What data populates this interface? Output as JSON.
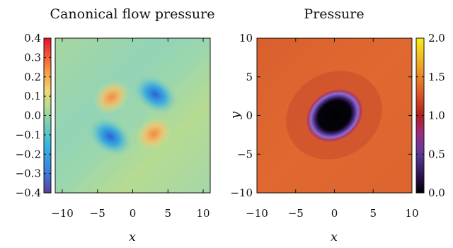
{
  "chart_data": [
    {
      "type": "heatmap",
      "title": "Canonical flow pressure",
      "xlabel": "x",
      "ylabel": "",
      "xlim": [
        -11,
        11
      ],
      "ylim": [
        -11,
        11
      ],
      "x_ticks": [
        "−10",
        "−5",
        "0",
        "5",
        "10"
      ],
      "x_tick_values": [
        -10,
        -5,
        0,
        5,
        10
      ],
      "y_ticks": [],
      "colorbar": {
        "colormap": "rainbow (blue → green → yellow → red)",
        "range": [
          -0.4,
          0.4
        ],
        "ticks": [
          "−0.4",
          "−0.3",
          "−0.2",
          "−0.1",
          "0.0",
          "0.1",
          "0.2",
          "0.3",
          "0.4"
        ],
        "tick_values": [
          -0.4,
          -0.3,
          -0.2,
          -0.1,
          0.0,
          0.1,
          0.2,
          0.3,
          0.4
        ],
        "position": "left"
      },
      "features": [
        {
          "kind": "low",
          "x": 3.2,
          "y": 3.0,
          "value": -0.22
        },
        {
          "kind": "low",
          "x": -3.2,
          "y": -3.0,
          "value": -0.22
        },
        {
          "kind": "high",
          "x": -3.0,
          "y": 2.6,
          "value": 0.15
        },
        {
          "kind": "high",
          "x": 3.0,
          "y": -2.6,
          "value": 0.15
        },
        {
          "kind": "background",
          "value": 0.02
        }
      ]
    },
    {
      "type": "heatmap",
      "title": "Pressure",
      "xlabel": "x",
      "ylabel": "y",
      "xlim": [
        -10,
        10
      ],
      "ylim": [
        -10,
        10
      ],
      "x_ticks": [
        "−10",
        "−5",
        "0",
        "5",
        "10"
      ],
      "x_tick_values": [
        -10,
        -5,
        0,
        5,
        10
      ],
      "y_ticks": [
        "−10",
        "−5",
        "0",
        "5",
        "10"
      ],
      "y_tick_values": [
        -10,
        -5,
        0,
        5,
        10
      ],
      "colorbar": {
        "colormap": "black → purple → red → orange → yellow",
        "range": [
          0.0,
          2.0
        ],
        "ticks": [
          "0.0",
          "0.5",
          "1.0",
          "1.5",
          "2.0"
        ],
        "tick_values": [
          0.0,
          0.5,
          1.0,
          1.5,
          2.0
        ],
        "position": "right"
      },
      "features": [
        {
          "kind": "low",
          "x": 0,
          "y": 0,
          "value": 0.0
        },
        {
          "kind": "background",
          "value": 1.3
        }
      ]
    }
  ]
}
